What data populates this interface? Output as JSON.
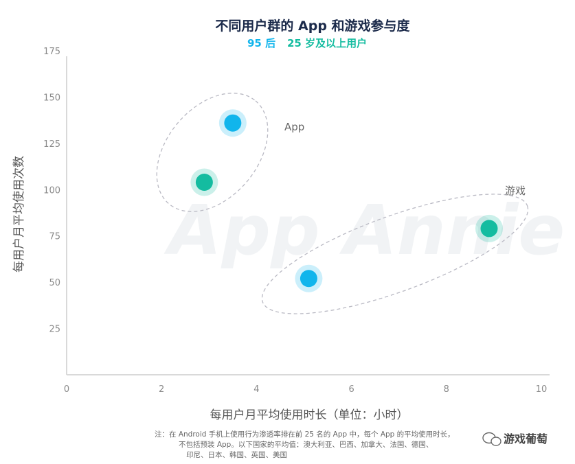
{
  "chart_data": {
    "type": "scatter",
    "title": "不同用户群的 App 和游戏参与度",
    "subtitle_series": [
      {
        "name": "95 后",
        "color": "#11b5ec"
      },
      {
        "name": "25 岁及以上用户",
        "color": "#14bca0"
      }
    ],
    "xlabel": "每用户月平均使用时长（单位：小时）",
    "ylabel": "每用户月平均使用次数",
    "xlim": [
      0,
      10
    ],
    "ylim": [
      0,
      175
    ],
    "xticks": [
      0,
      2,
      4,
      6,
      8,
      10
    ],
    "yticks": [
      25,
      50,
      75,
      100,
      125,
      150,
      175
    ],
    "grid": false,
    "points": [
      {
        "group": "App",
        "series": "95 后",
        "x": 3.5,
        "y": 136,
        "color": "#11b5ec"
      },
      {
        "group": "App",
        "series": "25 岁及以上用户",
        "x": 2.9,
        "y": 104,
        "color": "#14bca0"
      },
      {
        "group": "游戏",
        "series": "95 后",
        "x": 5.1,
        "y": 52,
        "color": "#11b5ec"
      },
      {
        "group": "游戏",
        "series": "25 岁及以上用户",
        "x": 8.9,
        "y": 79,
        "color": "#14bca0"
      }
    ],
    "annotations": [
      "App",
      "游戏"
    ]
  },
  "note_lines": [
    "注：在 Android 手机上使用行为渗透率排在前 25 名的 App 中，每个 App 的平均使用时长，",
    "不包括预装 App。以下国家的平均值：澳大利亚、巴西、加拿大、法国、德国、",
    "印尼、日本、韩国、英国、美国"
  ],
  "watermark": "App Annie",
  "brand": "游戏葡萄"
}
